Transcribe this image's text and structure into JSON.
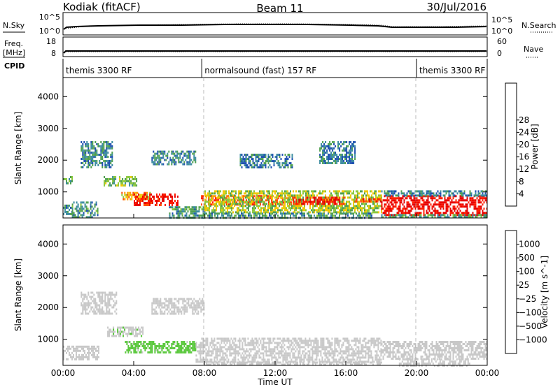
{
  "header": {
    "station": "Kodiak (fitACF)",
    "beam": "Beam 11",
    "date": "30/Jul/2016"
  },
  "side_labels": {
    "nsky": "N.Sky",
    "nsearch": "N.Search",
    "freq": "Freq.",
    "freq_unit": "[MHz]",
    "nave": "Nave",
    "cpid": "CPID"
  },
  "small_axes": {
    "noise_left_ticks": [
      "10^5",
      "10^0"
    ],
    "noise_right_ticks": [
      "10^5",
      "10^0"
    ],
    "freq_left_ticks": [
      "18",
      "8"
    ],
    "nave_right_ticks": [
      "60",
      "0"
    ]
  },
  "cpid_segments": [
    {
      "start_h": 0,
      "end_h": 7.85,
      "label": "themis 3300 RF"
    },
    {
      "start_h": 7.85,
      "end_h": 20.0,
      "label": "normalsound (fast) 157 RF"
    },
    {
      "start_h": 20.0,
      "end_h": 24.0,
      "label": "themis 3300 RF"
    }
  ],
  "chart_data": [
    {
      "type": "heatmap",
      "title": "Power",
      "xlabel": "Time UT",
      "ylabel": "Slant Range [km]",
      "xlim_hours": [
        0,
        24
      ],
      "ylim_km": [
        180,
        4600
      ],
      "x_ticks": [
        "00:00",
        "04:00",
        "08:00",
        "12:00",
        "16:00",
        "20:00",
        "00:00"
      ],
      "y_ticks": [
        "1000",
        "2000",
        "3000",
        "4000"
      ],
      "colorbar": {
        "label": "Power [dB]",
        "ticks": [
          "4",
          "8",
          "12",
          "16",
          "20",
          "24",
          "28"
        ],
        "colors": [
          "#0000ff",
          "#1e50b0",
          "#3c8ca0",
          "#50a050",
          "#8cc83c",
          "#f0c800",
          "#ff9600",
          "#ff5000",
          "#ff1e00",
          "#e60000"
        ],
        "range": [
          0,
          30
        ]
      },
      "regions": [
        {
          "start_h": 0.0,
          "end_h": 0.5,
          "range_min": 1250,
          "range_max": 1500,
          "value": 10
        },
        {
          "start_h": 0.0,
          "end_h": 0.5,
          "range_min": 300,
          "range_max": 600,
          "value": 8
        },
        {
          "start_h": 0.5,
          "end_h": 2.0,
          "range_min": 200,
          "range_max": 700,
          "value": 9
        },
        {
          "start_h": 1.0,
          "end_h": 2.8,
          "range_min": 1800,
          "range_max": 2600,
          "value": 8
        },
        {
          "start_h": 2.3,
          "end_h": 4.2,
          "range_min": 1200,
          "range_max": 1500,
          "value": 12
        },
        {
          "start_h": 3.3,
          "end_h": 5.0,
          "range_min": 800,
          "range_max": 1000,
          "value": 18
        },
        {
          "start_h": 4.0,
          "end_h": 6.5,
          "range_min": 600,
          "range_max": 950,
          "value": 27
        },
        {
          "start_h": 5.0,
          "end_h": 7.5,
          "range_min": 1850,
          "range_max": 2300,
          "value": 8
        },
        {
          "start_h": 6.0,
          "end_h": 8.0,
          "range_min": 180,
          "range_max": 550,
          "value": 9
        },
        {
          "start_h": 7.8,
          "end_h": 13.0,
          "range_min": 600,
          "range_max": 900,
          "value": 23
        },
        {
          "start_h": 8.0,
          "end_h": 18.0,
          "range_min": 350,
          "range_max": 1050,
          "value": 14
        },
        {
          "start_h": 8.0,
          "end_h": 17.5,
          "range_min": 180,
          "range_max": 350,
          "value": 9
        },
        {
          "start_h": 10.0,
          "end_h": 13.0,
          "range_min": 1800,
          "range_max": 2200,
          "value": 7
        },
        {
          "start_h": 13.0,
          "end_h": 16.0,
          "range_min": 650,
          "range_max": 850,
          "value": 27
        },
        {
          "start_h": 14.5,
          "end_h": 16.5,
          "range_min": 1900,
          "range_max": 2600,
          "value": 7
        },
        {
          "start_h": 16.5,
          "end_h": 18.0,
          "range_min": 700,
          "range_max": 800,
          "value": 24
        },
        {
          "start_h": 18.0,
          "end_h": 24.0,
          "range_min": 300,
          "range_max": 900,
          "value": 28
        },
        {
          "start_h": 18.0,
          "end_h": 24.0,
          "range_min": 900,
          "range_max": 1050,
          "value": 7
        },
        {
          "start_h": 18.0,
          "end_h": 24.0,
          "range_min": 180,
          "range_max": 300,
          "value": 10
        }
      ]
    },
    {
      "type": "heatmap",
      "title": "Velocity",
      "xlabel": "Time UT",
      "ylabel": "Slant Range [km]",
      "xlim_hours": [
        0,
        24
      ],
      "ylim_km": [
        180,
        4600
      ],
      "x_ticks": [
        "00:00",
        "04:00",
        "08:00",
        "12:00",
        "16:00",
        "20:00",
        "00:00"
      ],
      "y_ticks": [
        "1000",
        "2000",
        "3000",
        "4000"
      ],
      "colorbar": {
        "label": "Velocity [m s^-1]",
        "ticks": [
          "1000",
          "500",
          "100",
          "25",
          "−25",
          "−100",
          "−500",
          "−1000"
        ],
        "colors": [
          "#1e32c8",
          "#3c82b4",
          "#329650",
          "#5ac83c",
          "#c8c8c8",
          "#f0c800",
          "#ff9600",
          "#ff5000",
          "#ff0000"
        ],
        "range": [
          -1200,
          1200
        ]
      },
      "regions": [
        {
          "start_h": 0.0,
          "end_h": 2.0,
          "range_min": 350,
          "range_max": 800,
          "value": 0
        },
        {
          "start_h": 1.0,
          "end_h": 3.0,
          "range_min": 1800,
          "range_max": 2500,
          "value": 0
        },
        {
          "start_h": 2.5,
          "end_h": 4.5,
          "range_min": 1100,
          "range_max": 1400,
          "value": 120
        },
        {
          "start_h": 3.5,
          "end_h": 7.5,
          "range_min": 600,
          "range_max": 950,
          "value": 150
        },
        {
          "start_h": 5.0,
          "end_h": 8.0,
          "range_min": 1800,
          "range_max": 2300,
          "value": 0
        },
        {
          "start_h": 7.5,
          "end_h": 18.0,
          "range_min": 300,
          "range_max": 1050,
          "value": 0
        },
        {
          "start_h": 8.0,
          "end_h": 18.0,
          "range_min": 180,
          "range_max": 300,
          "value": -60
        },
        {
          "start_h": 18.0,
          "end_h": 24.0,
          "range_min": 400,
          "range_max": 950,
          "value": 0
        },
        {
          "start_h": 19.0,
          "end_h": 23.0,
          "range_min": 200,
          "range_max": 400,
          "value": 60
        }
      ]
    }
  ]
}
